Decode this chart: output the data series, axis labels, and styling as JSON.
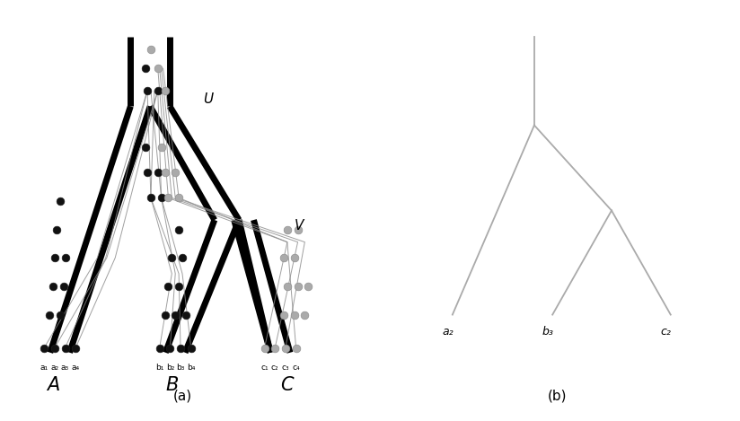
{
  "fig_width": 8.24,
  "fig_height": 4.69,
  "bg_color": "#ffffff",
  "panel_a": {
    "species_tree_color": "#000000",
    "species_tree_lw": 5.0,
    "coalescent_line_color": "#888888",
    "coalescent_line_lw": 0.7,
    "dot_black": "#111111",
    "dot_gray": "#aaaaaa",
    "dot_size": 40,
    "U_label": "U",
    "V_label": "V",
    "A_label": "A",
    "B_label": "B",
    "C_label": "C",
    "caption": "(a)",
    "taxa_labels_a": [
      "a₁",
      "a₂",
      "a₃",
      "a₄"
    ],
    "taxa_labels_b": [
      "b₁",
      "b₂",
      "b₃",
      "b₄"
    ],
    "taxa_labels_c": [
      "c₁",
      "c₂",
      "c₃",
      "c₄"
    ]
  },
  "panel_b": {
    "line_color": "#aaaaaa",
    "line_lw": 1.3,
    "label_a2": "a₂",
    "label_b3": "b₃",
    "label_c2": "c₂",
    "caption": "(b)"
  }
}
